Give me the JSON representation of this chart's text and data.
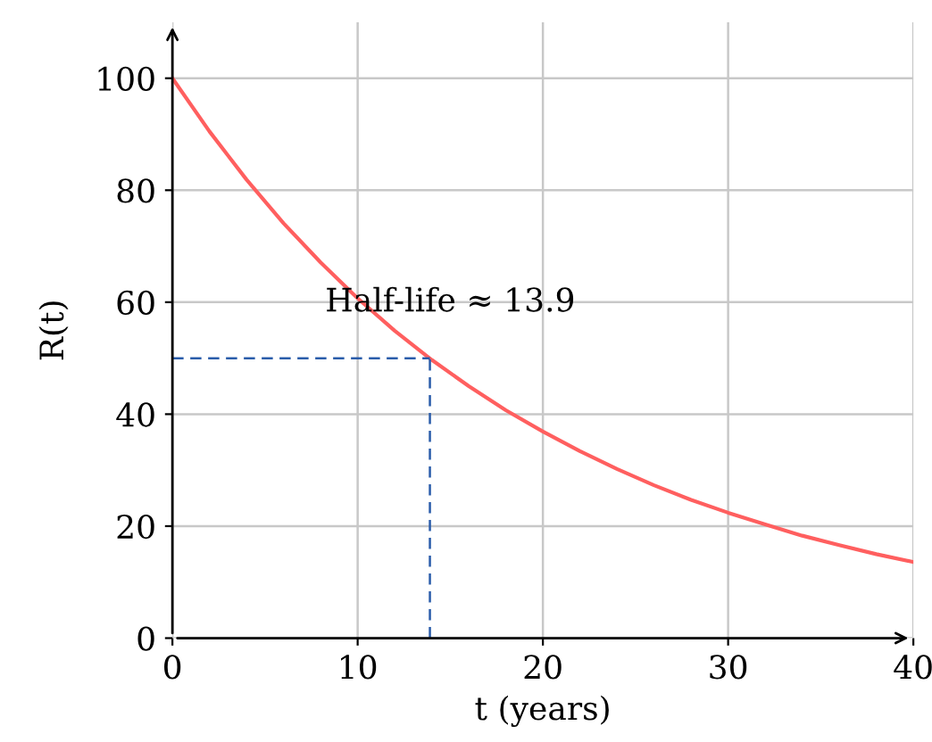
{
  "chart_data": {
    "type": "line",
    "xlabel": "t (years)",
    "ylabel": "R(t)",
    "x": [
      0,
      2,
      4,
      6,
      8,
      10,
      12,
      14,
      16,
      18,
      20,
      22,
      24,
      26,
      28,
      30,
      32,
      34,
      36,
      38,
      40
    ],
    "series": [
      {
        "color": "#ff5f5f",
        "values": [
          100,
          90.5,
          81.9,
          74.1,
          67.1,
          60.7,
          54.9,
          49.7,
          45.0,
          40.7,
          36.9,
          33.4,
          30.2,
          27.3,
          24.7,
          22.4,
          20.3,
          18.3,
          16.6,
          15.0,
          13.6
        ]
      }
    ],
    "xlim": [
      0,
      40
    ],
    "ylim": [
      0,
      110
    ],
    "xticks": [
      0,
      10,
      20,
      30,
      40
    ],
    "yticks": [
      0,
      20,
      40,
      60,
      80,
      100
    ],
    "grid": true,
    "marker": "none",
    "line_style": "solid",
    "ref_lines": [
      {
        "axis": "y",
        "value": 50,
        "color": "#2a5caa",
        "line_style": "dashed"
      },
      {
        "axis": "x",
        "value": 13.9,
        "color": "#2a5caa",
        "line_style": "dashed"
      }
    ],
    "annotations": [
      "Half-life ≈ 13.9"
    ]
  }
}
